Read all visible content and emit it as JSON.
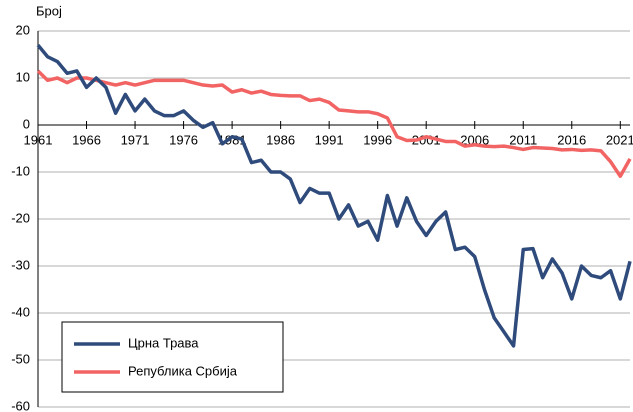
{
  "chart_data": {
    "type": "line",
    "y_label": "Број",
    "x": [
      1961,
      1962,
      1963,
      1964,
      1965,
      1966,
      1967,
      1968,
      1969,
      1970,
      1971,
      1972,
      1973,
      1974,
      1975,
      1976,
      1977,
      1978,
      1979,
      1980,
      1981,
      1982,
      1983,
      1984,
      1985,
      1986,
      1987,
      1988,
      1989,
      1990,
      1991,
      1992,
      1993,
      1994,
      1995,
      1996,
      1997,
      1998,
      1999,
      2000,
      2001,
      2002,
      2003,
      2004,
      2005,
      2006,
      2007,
      2008,
      2009,
      2010,
      2011,
      2012,
      2013,
      2014,
      2015,
      2016,
      2017,
      2018,
      2019,
      2020,
      2021,
      2022
    ],
    "series": [
      {
        "name": "Црна Трава",
        "color": "#2f4b7c",
        "values": [
          17,
          14.5,
          13.5,
          11,
          11.5,
          8,
          10,
          8,
          2.5,
          6.5,
          3,
          5.5,
          3,
          2,
          2,
          3,
          1,
          -0.5,
          0.5,
          -4,
          -2.5,
          -3,
          -8,
          -7.5,
          -10,
          -10,
          -11.5,
          -16.5,
          -13.5,
          -14.5,
          -14.5,
          -20,
          -17,
          -21.5,
          -20.5,
          -24.5,
          -15,
          -21.5,
          -15.5,
          -20.5,
          -23.5,
          -20.5,
          -18.5,
          -26.5,
          -26,
          -28,
          -35,
          -41,
          -44,
          -47,
          -26.5,
          -26.3,
          -32.5,
          -28.5,
          -31.5,
          -37,
          -30,
          -32,
          -32.5,
          -31,
          -37,
          -29
        ]
      },
      {
        "name": "Република Србија",
        "color": "#f26464",
        "values": [
          11.5,
          9.5,
          10,
          9,
          10,
          10,
          9.5,
          9,
          8.5,
          9,
          8.5,
          9,
          9.5,
          9.5,
          9.5,
          9.5,
          9,
          8.5,
          8.3,
          8.5,
          7,
          7.5,
          6.8,
          7.2,
          6.5,
          6.3,
          6.2,
          6.2,
          5.2,
          5.5,
          4.8,
          3.2,
          3,
          2.8,
          2.8,
          2.4,
          1.5,
          -2.5,
          -3.3,
          -3.2,
          -2.5,
          -3,
          -3.5,
          -3.5,
          -4.5,
          -4.2,
          -4.5,
          -4.6,
          -4.5,
          -4.8,
          -5.2,
          -4.8,
          -4.9,
          -5,
          -5.3,
          -5.2,
          -5.4,
          -5.3,
          -5.5,
          -7.8,
          -10.9,
          -7.2
        ]
      }
    ],
    "xlim": [
      1961,
      2022
    ],
    "xticks": [
      1961,
      1966,
      1971,
      1976,
      1981,
      1986,
      1991,
      1996,
      2001,
      2006,
      2011,
      2016,
      2021
    ],
    "ylim": [
      -60,
      20
    ],
    "yticks": [
      -60,
      -50,
      -40,
      -30,
      -20,
      -10,
      0,
      10,
      20
    ],
    "grid": true,
    "legend": "lower left"
  }
}
